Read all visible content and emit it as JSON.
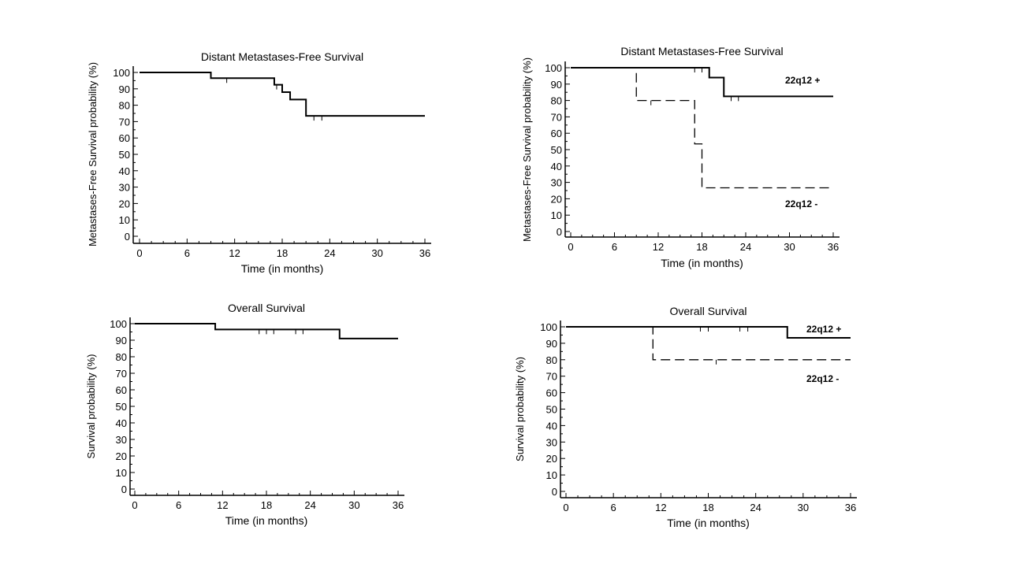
{
  "chart_data": [
    {
      "id": "p1",
      "type": "line",
      "step": true,
      "title": "Distant Metastases-Free Survival",
      "xlabel": "Time (in months)",
      "ylabel": "Metastases-Free Survival probability (%)",
      "xlim": [
        0,
        36
      ],
      "ylim": [
        0,
        100
      ],
      "xticks": [
        "0",
        "6",
        "12",
        "18",
        "24",
        "30",
        "36"
      ],
      "yticks": [
        "0",
        "10",
        "20",
        "30",
        "40",
        "50",
        "60",
        "70",
        "80",
        "90",
        "100"
      ],
      "series": [
        {
          "style": "solid",
          "x": [
            0,
            9,
            17,
            18,
            19,
            21,
            36
          ],
          "y": [
            100,
            96.5,
            92.5,
            88,
            83.5,
            73.5,
            73.5
          ],
          "censored_x": [
            11,
            17.3,
            22,
            23
          ]
        }
      ]
    },
    {
      "id": "p2",
      "type": "line",
      "step": true,
      "title": "Distant Metastases-Free Survival",
      "xlabel": "Time (in months)",
      "ylabel": "Metastases-Free Survival probability (%)",
      "xlim": [
        0,
        36
      ],
      "ylim": [
        0,
        100
      ],
      "xticks": [
        "0",
        "6",
        "12",
        "18",
        "24",
        "30",
        "36"
      ],
      "yticks": [
        "0",
        "10",
        "20",
        "30",
        "40",
        "50",
        "60",
        "70",
        "80",
        "90",
        "100"
      ],
      "series": [
        {
          "name": "22q12 +",
          "style": "solid",
          "x": [
            0,
            19,
            21,
            36
          ],
          "y": [
            100,
            94,
            82.5,
            82.5
          ],
          "censored_x": [
            17,
            18,
            22,
            23
          ]
        },
        {
          "name": "22q12 -",
          "style": "dashed",
          "x": [
            0,
            9,
            17,
            18,
            36
          ],
          "y": [
            100,
            80,
            53.5,
            26.7,
            26.7
          ],
          "censored_x": [
            11
          ]
        }
      ]
    },
    {
      "id": "p3",
      "type": "line",
      "step": true,
      "title": "Overall Survival",
      "xlabel": "Time (in months)",
      "ylabel": "Survival probability (%)",
      "xlim": [
        0,
        36
      ],
      "ylim": [
        0,
        100
      ],
      "xticks": [
        "0",
        "6",
        "12",
        "18",
        "24",
        "30",
        "36"
      ],
      "yticks": [
        "0",
        "10",
        "20",
        "30",
        "40",
        "50",
        "60",
        "70",
        "80",
        "90",
        "100"
      ],
      "series": [
        {
          "style": "solid",
          "x": [
            0,
            11,
            28,
            36
          ],
          "y": [
            100,
            96.5,
            91,
            91
          ],
          "censored_x": [
            17,
            18,
            19,
            22,
            23
          ]
        }
      ]
    },
    {
      "id": "p4",
      "type": "line",
      "step": true,
      "title": "Overall Survival",
      "xlabel": "Time (in months)",
      "ylabel": "Survival probability (%)",
      "xlim": [
        0,
        36
      ],
      "ylim": [
        0,
        100
      ],
      "xticks": [
        "0",
        "6",
        "12",
        "18",
        "24",
        "30",
        "36"
      ],
      "yticks": [
        "0",
        "10",
        "20",
        "30",
        "40",
        "50",
        "60",
        "70",
        "80",
        "90",
        "100"
      ],
      "series": [
        {
          "name": "22q12 +",
          "style": "solid",
          "x": [
            0,
            28,
            36
          ],
          "y": [
            100,
            93.3,
            93.3
          ],
          "censored_x": [
            17,
            18,
            22,
            23
          ]
        },
        {
          "name": "22q12 -",
          "style": "dashed",
          "x": [
            0,
            11,
            36
          ],
          "y": [
            100,
            80,
            80
          ],
          "censored_x": [
            19
          ]
        }
      ]
    }
  ]
}
